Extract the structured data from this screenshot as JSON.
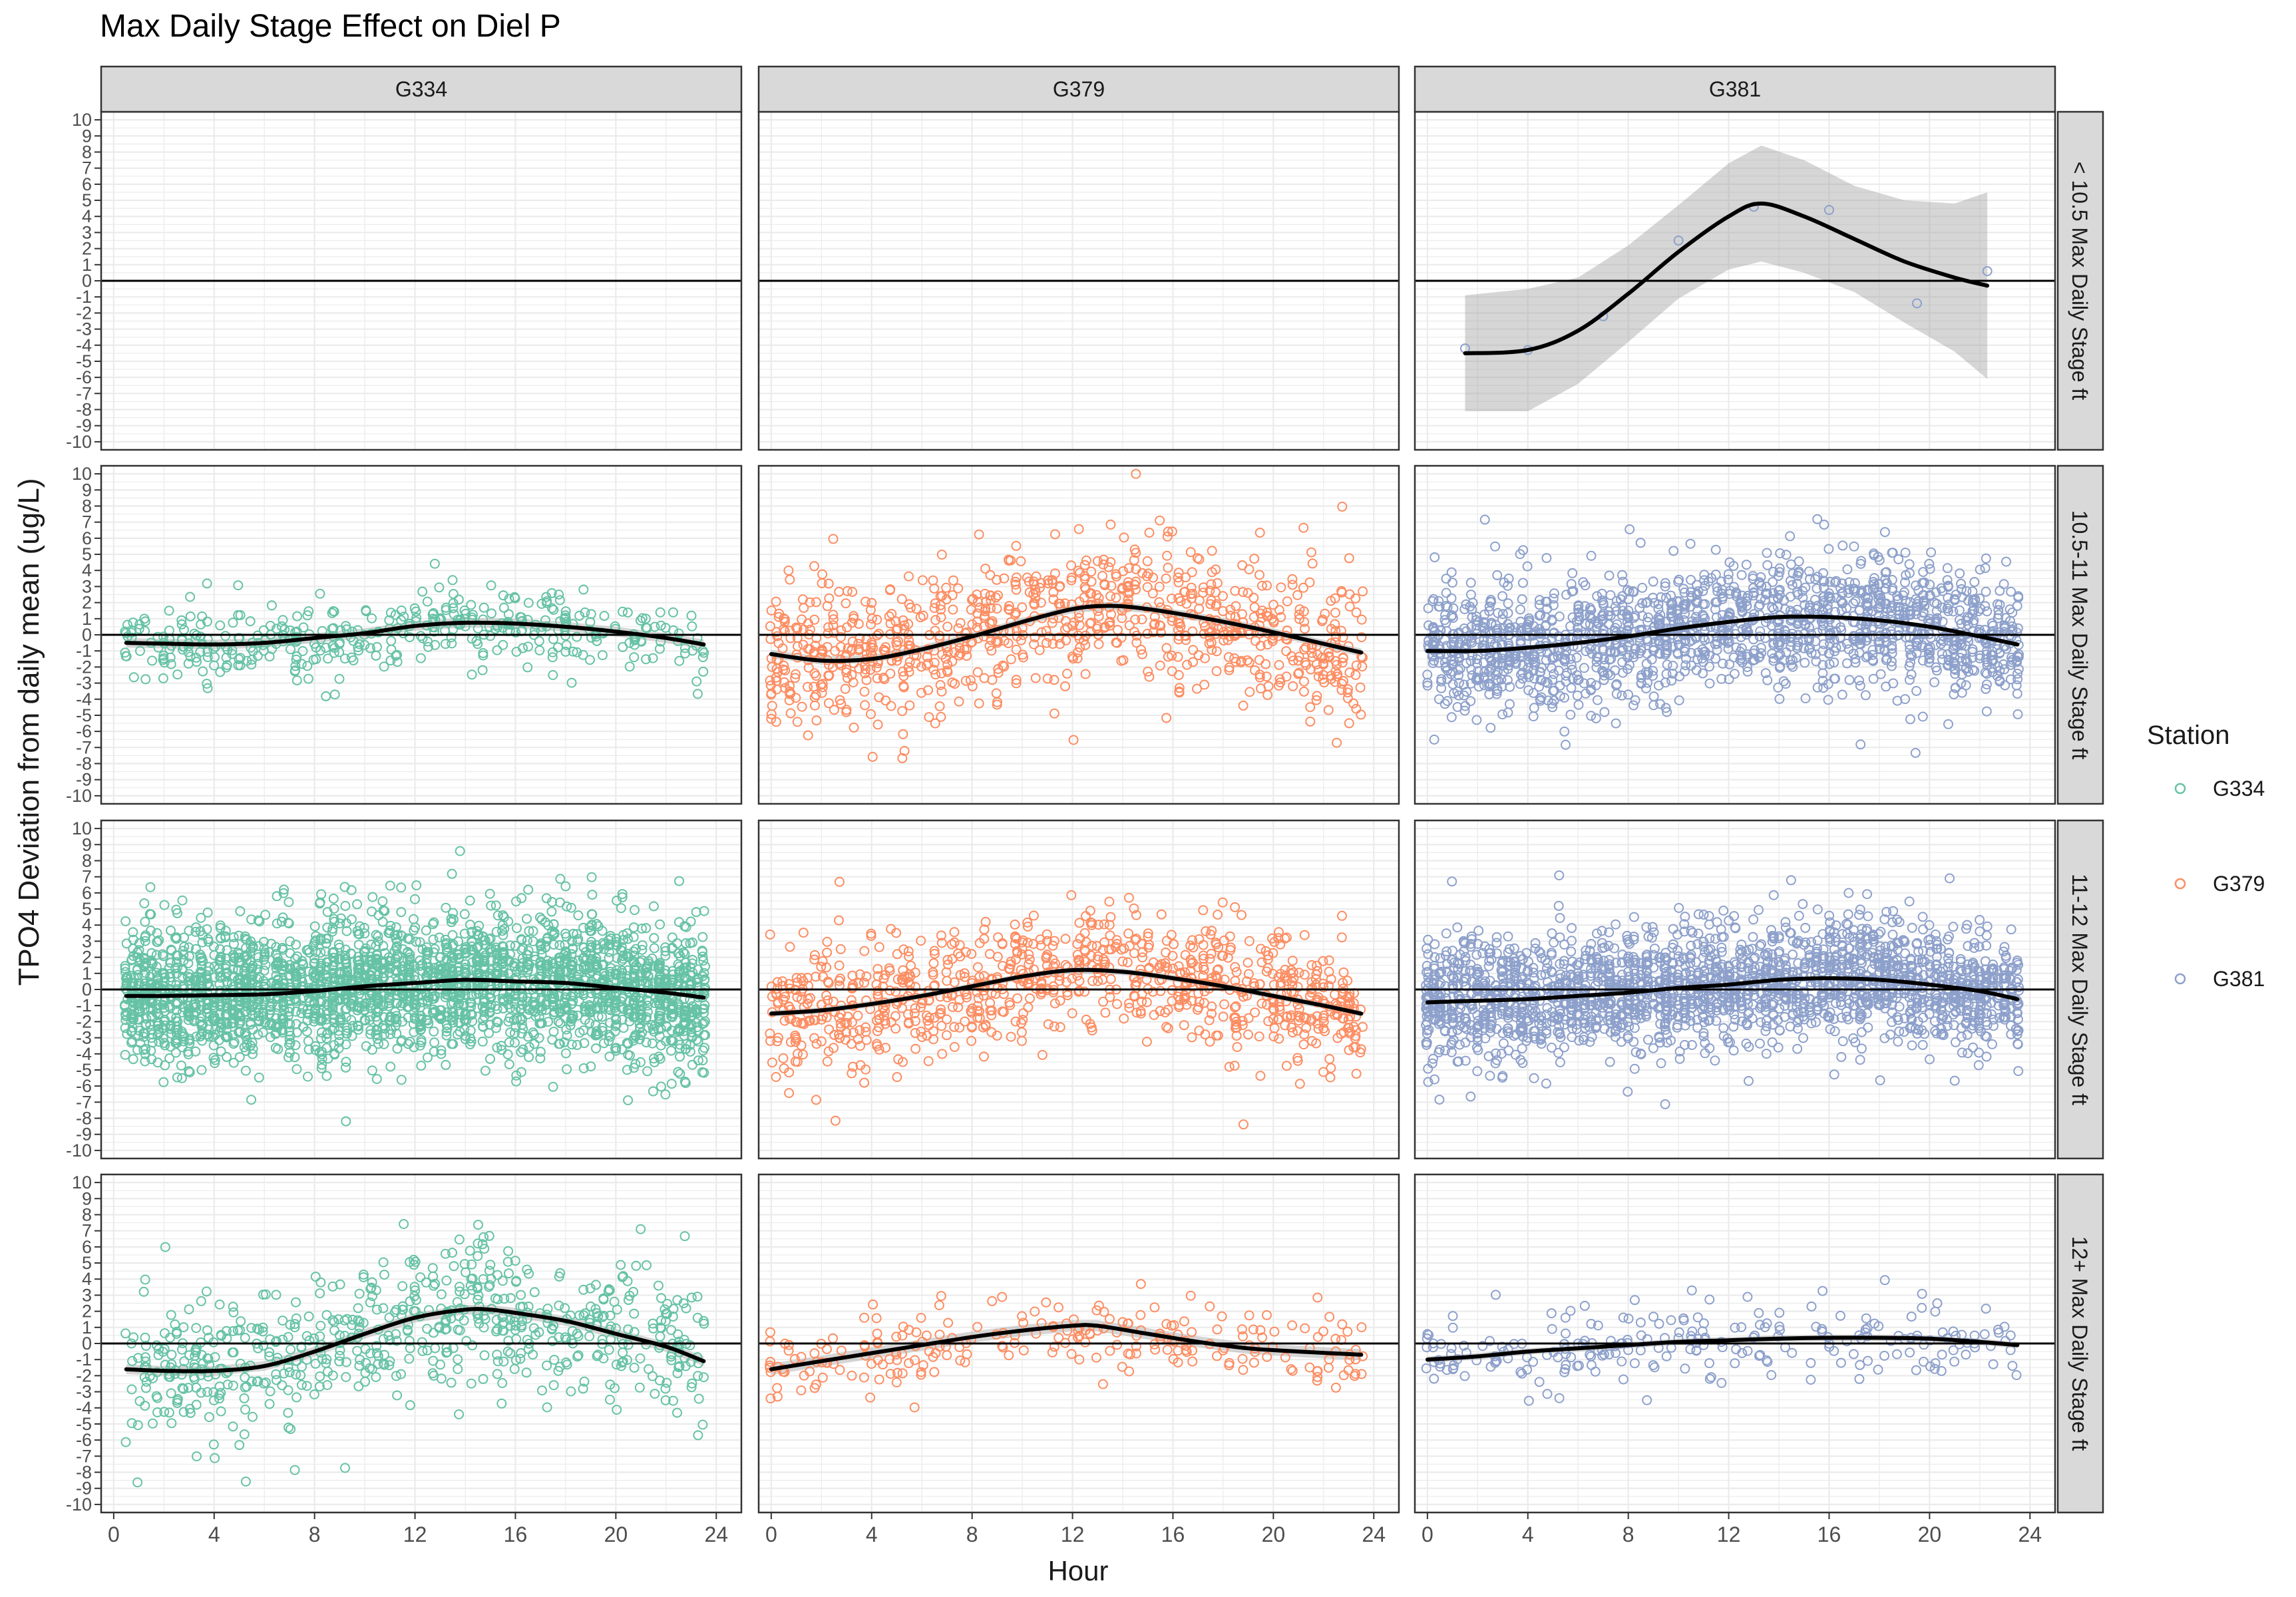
{
  "chart_data": {
    "type": "scatter",
    "title": "Max Daily Stage Effect on Diel P",
    "xlabel": "Hour",
    "ylabel": "TPO4 Deviation from daily mean (ug/L)",
    "xlim": [
      -0.5,
      25
    ],
    "ylim": [
      -10.5,
      10.5
    ],
    "x_ticks": [
      0,
      4,
      8,
      12,
      16,
      20,
      24
    ],
    "y_ticks": [
      10,
      9,
      8,
      7,
      6,
      5,
      4,
      3,
      2,
      1,
      0,
      -1,
      -2,
      -3,
      -4,
      -5,
      -6,
      -7,
      -8,
      -9,
      -10
    ],
    "grid": true,
    "legend_position": "right",
    "legend": {
      "title": "Station",
      "entries": [
        {
          "name": "G334",
          "color": "#66C2A5"
        },
        {
          "name": "G379",
          "color": "#FC8D62"
        },
        {
          "name": "G381",
          "color": "#8DA0CB"
        }
      ]
    },
    "column_facets": [
      "G334",
      "G379",
      "G381"
    ],
    "row_facets": [
      "< 10.5 Max Daily Stage ft",
      "10.5-11 Max Daily Stage ft",
      "11-12 Max Daily Stage ft",
      "12+ Max Daily Stage ft"
    ],
    "panels": [
      {
        "row": 0,
        "col": 0,
        "n": 0,
        "spread": 0,
        "jitter": 0,
        "smooth": null
      },
      {
        "row": 0,
        "col": 1,
        "n": 0,
        "spread": 0,
        "jitter": 0,
        "smooth": null
      },
      {
        "row": 0,
        "col": 2,
        "n": 0,
        "spread": 0,
        "jitter": 0,
        "points": [
          [
            1.5,
            -4.2
          ],
          [
            4.0,
            -4.3
          ],
          [
            7.0,
            -2.2
          ],
          [
            10.0,
            2.5
          ],
          [
            13.0,
            4.6
          ],
          [
            16.0,
            4.4
          ],
          [
            19.5,
            -1.4
          ],
          [
            22.3,
            0.6
          ]
        ],
        "smooth": {
          "x": [
            1.5,
            4,
            6,
            8,
            10,
            12,
            13.3,
            15,
            17,
            19,
            21,
            22.3
          ],
          "y": [
            -4.5,
            -4.3,
            -3.1,
            -0.8,
            1.8,
            4.0,
            4.8,
            4.0,
            2.6,
            1.2,
            0.2,
            -0.3
          ]
        },
        "band": [
          3.6,
          3.8,
          3.3,
          3.0,
          2.9,
          3.3,
          3.6,
          3.5,
          3.3,
          3.8,
          4.6,
          5.8
        ]
      },
      {
        "row": 1,
        "col": 0,
        "n": 420,
        "spread": 1.2,
        "jitter": 0.12,
        "smooth": {
          "x": [
            0.5,
            2,
            4,
            6,
            8,
            10,
            12,
            14,
            16,
            18,
            20,
            22,
            23.5
          ],
          "y": [
            -0.5,
            -0.55,
            -0.6,
            -0.5,
            -0.2,
            0.1,
            0.55,
            0.75,
            0.7,
            0.5,
            0.2,
            -0.2,
            -0.6
          ]
        },
        "band": [
          0.3
        ]
      },
      {
        "row": 1,
        "col": 1,
        "n": 900,
        "spread": 2.3,
        "jitter": 0.12,
        "smooth": {
          "x": [
            0,
            2,
            4,
            6,
            8,
            10,
            12,
            13.5,
            15,
            17,
            19,
            21,
            23.5
          ],
          "y": [
            -1.2,
            -1.6,
            -1.5,
            -0.9,
            -0.1,
            0.8,
            1.6,
            1.8,
            1.6,
            1.1,
            0.5,
            -0.2,
            -1.1
          ]
        },
        "band": [
          0.25
        ]
      },
      {
        "row": 1,
        "col": 2,
        "n": 1700,
        "spread": 1.9,
        "jitter": 0.12,
        "smooth": {
          "x": [
            0,
            2,
            4,
            6,
            8,
            10,
            12,
            14,
            16,
            18,
            20,
            22,
            23.5
          ],
          "y": [
            -1.0,
            -1.0,
            -0.8,
            -0.5,
            -0.1,
            0.4,
            0.8,
            1.1,
            1.1,
            0.9,
            0.5,
            -0.1,
            -0.6
          ]
        },
        "band": [
          0.15
        ]
      },
      {
        "row": 2,
        "col": 0,
        "n": 2800,
        "spread": 2.1,
        "jitter": 0.12,
        "smooth": {
          "x": [
            0.5,
            2,
            4,
            6,
            8,
            10,
            12,
            14,
            16,
            18,
            20,
            22,
            23.5
          ],
          "y": [
            -0.4,
            -0.4,
            -0.35,
            -0.3,
            -0.1,
            0.2,
            0.4,
            0.6,
            0.5,
            0.4,
            0.1,
            -0.2,
            -0.5
          ]
        },
        "band": [
          0.12
        ]
      },
      {
        "row": 2,
        "col": 1,
        "n": 900,
        "spread": 2.0,
        "jitter": 0.12,
        "smooth": {
          "x": [
            0,
            2,
            4,
            6,
            8,
            10,
            12,
            14,
            16,
            18,
            20,
            22,
            23.5
          ],
          "y": [
            -1.5,
            -1.3,
            -0.9,
            -0.4,
            0.2,
            0.8,
            1.2,
            1.1,
            0.7,
            0.2,
            -0.4,
            -1.0,
            -1.5
          ]
        },
        "band": [
          0.2
        ]
      },
      {
        "row": 2,
        "col": 2,
        "n": 2200,
        "spread": 1.8,
        "jitter": 0.12,
        "smooth": {
          "x": [
            0,
            2,
            4,
            6,
            8,
            10,
            12,
            14,
            16,
            18,
            20,
            22,
            23.5
          ],
          "y": [
            -0.8,
            -0.7,
            -0.6,
            -0.4,
            -0.2,
            0.1,
            0.3,
            0.6,
            0.7,
            0.6,
            0.3,
            -0.1,
            -0.6
          ]
        },
        "band": [
          0.12
        ]
      },
      {
        "row": 3,
        "col": 0,
        "n": 650,
        "spread": 2.2,
        "jitter": 0.12,
        "smooth": {
          "x": [
            0.5,
            2,
            4,
            6,
            8,
            10,
            12,
            14,
            15,
            16,
            18,
            20,
            22,
            23.5
          ],
          "y": [
            -1.6,
            -1.7,
            -1.7,
            -1.4,
            -0.5,
            0.6,
            1.6,
            2.1,
            2.1,
            1.9,
            1.4,
            0.6,
            -0.2,
            -1.1
          ]
        },
        "band": [
          0.3
        ]
      },
      {
        "row": 3,
        "col": 1,
        "n": 240,
        "spread": 1.2,
        "jitter": 0.12,
        "smooth": {
          "x": [
            0,
            2,
            4,
            6,
            8,
            10,
            12,
            13,
            15,
            17,
            19,
            21,
            23.5
          ],
          "y": [
            -1.6,
            -1.1,
            -0.6,
            -0.1,
            0.4,
            0.8,
            1.1,
            1.1,
            0.6,
            0.1,
            -0.3,
            -0.5,
            -0.7
          ]
        },
        "band": [
          0.35
        ]
      },
      {
        "row": 3,
        "col": 2,
        "n": 240,
        "spread": 1.2,
        "jitter": 0.12,
        "smooth": {
          "x": [
            0,
            2,
            4,
            6,
            8,
            10,
            12,
            14,
            16,
            18,
            20,
            22,
            23.5
          ],
          "y": [
            -1.0,
            -0.8,
            -0.5,
            -0.3,
            -0.1,
            0.1,
            0.2,
            0.3,
            0.35,
            0.35,
            0.3,
            0.1,
            -0.1
          ]
        },
        "band": [
          0.2
        ]
      }
    ]
  }
}
